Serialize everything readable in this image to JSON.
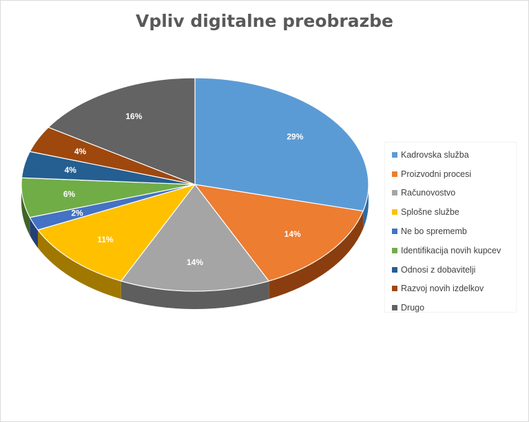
{
  "chart_data": {
    "type": "pie",
    "title": "Vpliv digitalne preobrazbe",
    "slices": [
      {
        "label": "Kadrovska služba",
        "value": 29,
        "color": "#5B9BD5",
        "side": "#2E6DA4"
      },
      {
        "label": "Proizvodni procesi",
        "value": 14,
        "color": "#ED7D31",
        "side": "#8A3E0F"
      },
      {
        "label": "Računovostvo",
        "value": 14,
        "color": "#A5A5A5",
        "side": "#5E5E5E"
      },
      {
        "label": "Splošne službe",
        "value": 11,
        "color": "#FFC000",
        "side": "#A07800"
      },
      {
        "label": "Ne bo sprememb",
        "value": 2,
        "color": "#4472C4",
        "side": "#243F73"
      },
      {
        "label": "Identifikacija novih kupcev",
        "value": 6,
        "color": "#70AD47",
        "side": "#3F6628"
      },
      {
        "label": "Odnosi z dobavitelji",
        "value": 4,
        "color": "#255E91",
        "side": "#123250"
      },
      {
        "label": "Razvoj novih izdelkov",
        "value": 4,
        "color": "#9E480E",
        "side": "#5A2807"
      },
      {
        "label": "Drugo",
        "value": 16,
        "color": "#636363",
        "side": "#383838"
      }
    ],
    "data_labels": [
      "29%",
      "14%",
      "14%",
      "11%",
      "2%",
      "6%",
      "4%",
      "4%",
      "16%"
    ],
    "legend_position": "right"
  }
}
